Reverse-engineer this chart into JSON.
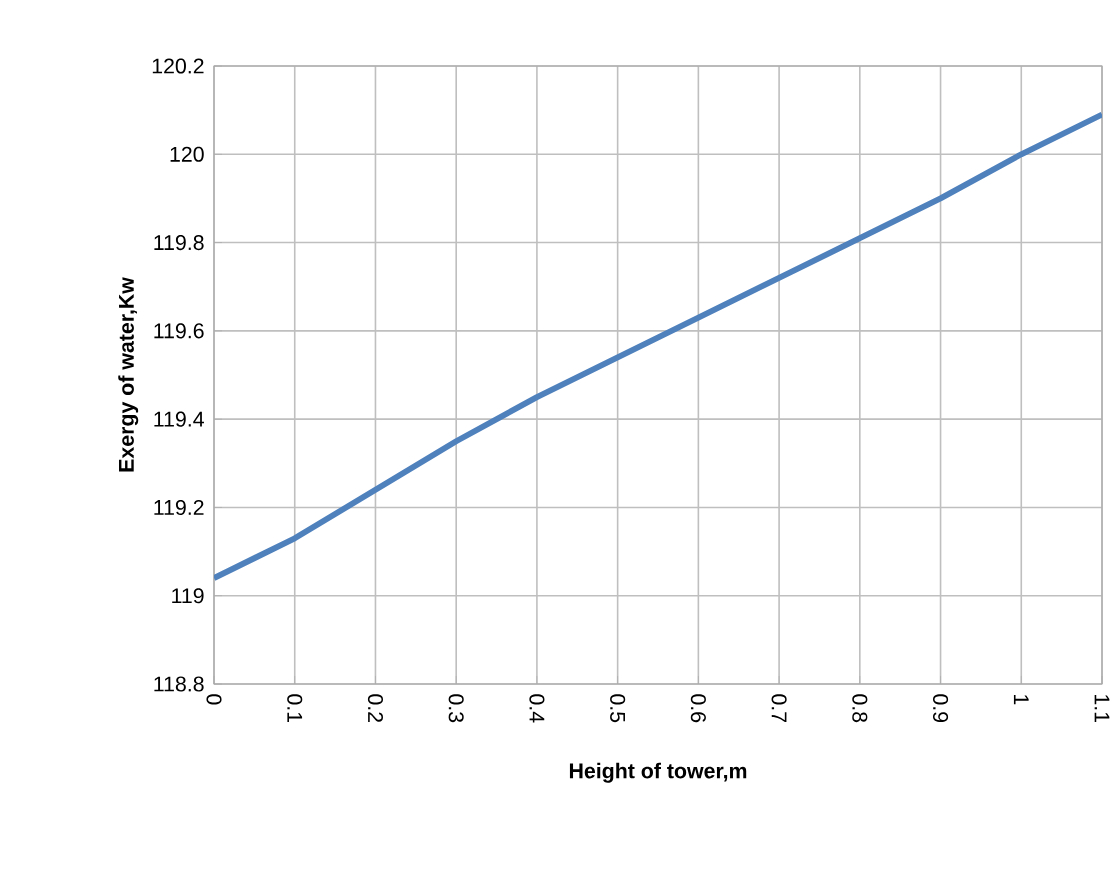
{
  "chart_data": {
    "type": "line",
    "xlabel": "Height of tower,m",
    "ylabel": "Exergy of water,Kw",
    "x": [
      0,
      0.1,
      0.2,
      0.3,
      0.4,
      0.5,
      0.6,
      0.7,
      0.8,
      0.9,
      1,
      1.1
    ],
    "series": [
      {
        "color": "#4f81bd",
        "values": [
          119.04,
          119.13,
          119.24,
          119.35,
          119.45,
          119.54,
          119.63,
          119.72,
          119.81,
          119.9,
          120.0,
          120.09
        ]
      }
    ],
    "xlim": [
      0,
      1.1
    ],
    "xticks": [
      0,
      0.1,
      0.2,
      0.3,
      0.4,
      0.5,
      0.6,
      0.7,
      0.8,
      0.9,
      1,
      1.1
    ],
    "ylim": [
      118.8,
      120.2
    ],
    "yticks": [
      118.8,
      119,
      119.2,
      119.4,
      119.6,
      119.8,
      120,
      120.2
    ],
    "grid": true,
    "marker": "none",
    "line_style": "solid"
  }
}
